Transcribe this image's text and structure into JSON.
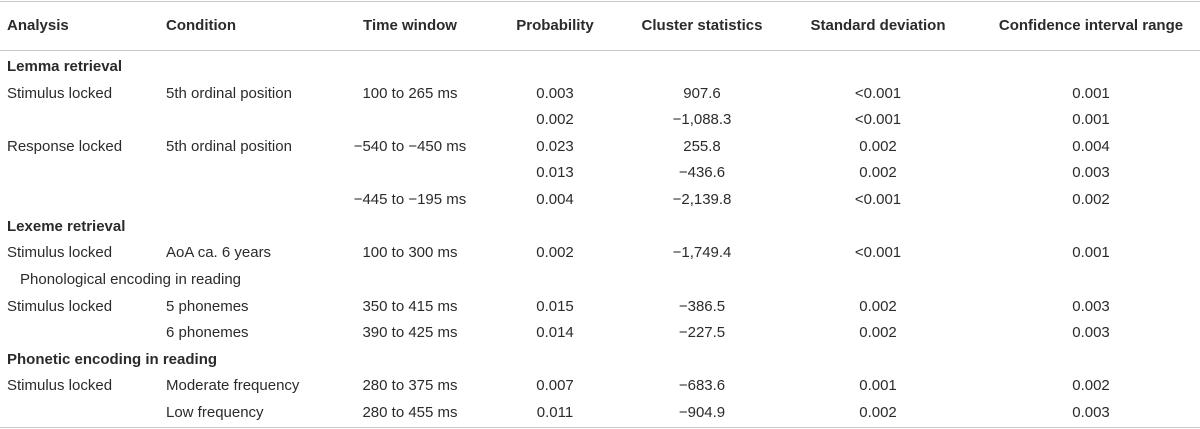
{
  "header": {
    "analysis": "Analysis",
    "condition": "Condition",
    "time_window": "Time window",
    "probability": "Probability",
    "cluster_statistics": "Cluster statistics",
    "standard_deviation": "Standard deviation",
    "confidence_interval_range": "Confidence interval range"
  },
  "sections": {
    "lemma": "Lemma retrieval",
    "lexeme": "Lexeme retrieval",
    "phonological": "Phonological encoding in reading",
    "phonetic": "Phonetic encoding in reading"
  },
  "rows": [
    {
      "analysis": "Stimulus locked",
      "condition": "5th ordinal position",
      "time": "100 to 265 ms",
      "prob": "0.003",
      "clust": "907.6",
      "sd": "<0.001",
      "ci": "0.001"
    },
    {
      "analysis": "",
      "condition": "",
      "time": "",
      "prob": "0.002",
      "clust": "−1,088.3",
      "sd": "<0.001",
      "ci": "0.001"
    },
    {
      "analysis": "Response locked",
      "condition": "5th ordinal position",
      "time": "−540 to −450 ms",
      "prob": "0.023",
      "clust": "255.8",
      "sd": "0.002",
      "ci": "0.004"
    },
    {
      "analysis": "",
      "condition": "",
      "time": "",
      "prob": "0.013",
      "clust": "−436.6",
      "sd": "0.002",
      "ci": "0.003"
    },
    {
      "analysis": "",
      "condition": "",
      "time": "−445 to −195 ms",
      "prob": "0.004",
      "clust": "−2,139.8",
      "sd": "<0.001",
      "ci": "0.002"
    },
    {
      "analysis": "Stimulus locked",
      "condition": "AoA ca. 6 years",
      "time": "100 to 300 ms",
      "prob": "0.002",
      "clust": "−1,749.4",
      "sd": "<0.001",
      "ci": "0.001"
    },
    {
      "analysis": "Stimulus locked",
      "condition": "5 phonemes",
      "time": "350 to 415 ms",
      "prob": "0.015",
      "clust": "−386.5",
      "sd": "0.002",
      "ci": "0.003"
    },
    {
      "analysis": "",
      "condition": "6 phonemes",
      "time": "390 to 425 ms",
      "prob": "0.014",
      "clust": "−227.5",
      "sd": "0.002",
      "ci": "0.003"
    },
    {
      "analysis": "Stimulus locked",
      "condition": "Moderate frequency",
      "time": "280 to 375 ms",
      "prob": "0.007",
      "clust": "−683.6",
      "sd": "0.001",
      "ci": "0.002"
    },
    {
      "analysis": "",
      "condition": "Low frequency",
      "time": "280 to 455 ms",
      "prob": "0.011",
      "clust": "−904.9",
      "sd": "0.002",
      "ci": "0.003"
    }
  ]
}
